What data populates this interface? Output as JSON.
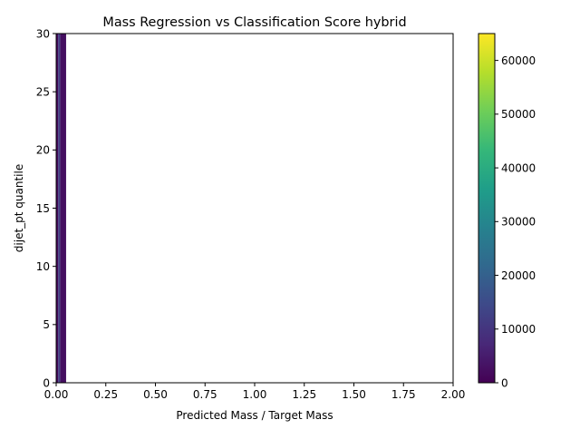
{
  "chart_data": {
    "type": "heatmap",
    "title": "Mass Regression vs Classification Score hybrid",
    "xlabel": "Predicted Mass / Target Mass",
    "ylabel": "dijet_pt quantile",
    "xlim": [
      0,
      2
    ],
    "ylim": [
      0,
      30
    ],
    "xticks": [
      0.0,
      0.25,
      0.5,
      0.75,
      1.0,
      1.25,
      1.5,
      1.75,
      2.0
    ],
    "xtick_labels": [
      "0.00",
      "0.25",
      "0.50",
      "0.75",
      "1.00",
      "1.25",
      "1.50",
      "1.75",
      "2.00"
    ],
    "yticks": [
      0,
      5,
      10,
      15,
      20,
      25,
      30
    ],
    "ytick_labels": [
      "0",
      "5",
      "10",
      "15",
      "20",
      "25",
      "30"
    ],
    "colormap": "viridis",
    "colorbar": {
      "min": 0,
      "max": 65000,
      "ticks": [
        0,
        10000,
        20000,
        30000,
        40000,
        50000,
        60000
      ],
      "tick_labels": [
        "0",
        "10000",
        "20000",
        "30000",
        "40000",
        "50000",
        "60000"
      ]
    },
    "cells": [
      {
        "x0": 0.0,
        "x1": 0.01,
        "y0": 0,
        "y1": 30,
        "value": 1500
      },
      {
        "x0": 0.01,
        "x1": 0.02,
        "y0": 0,
        "y1": 30,
        "value": 12000
      },
      {
        "x0": 0.02,
        "x1": 0.05,
        "y0": 0,
        "y1": 30,
        "value": 2500
      }
    ],
    "grid": false
  }
}
